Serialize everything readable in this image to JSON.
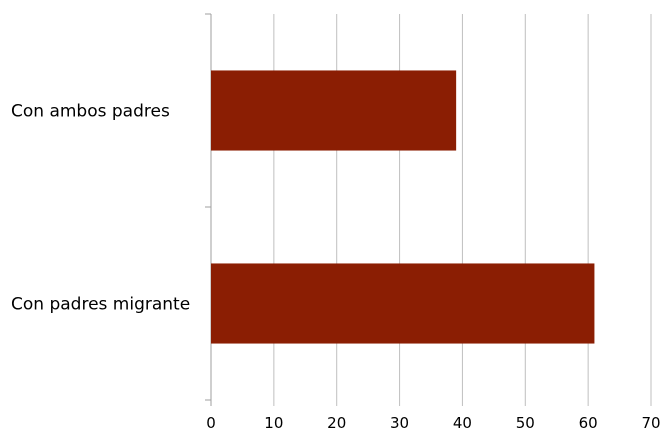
{
  "chart_data": {
    "type": "bar",
    "orientation": "horizontal",
    "categories": [
      "Con ambos padres",
      "Con padres migrante"
    ],
    "values": [
      39,
      61
    ],
    "xlim": [
      0,
      70
    ],
    "x_ticks": [
      0,
      10,
      20,
      30,
      40,
      50,
      60,
      70
    ],
    "title": "",
    "xlabel": "",
    "ylabel": "",
    "grid": true,
    "legend": "none",
    "colors": {
      "bar": "#8B1E03",
      "grid": "#BFBFBF",
      "text": "#000000"
    }
  }
}
